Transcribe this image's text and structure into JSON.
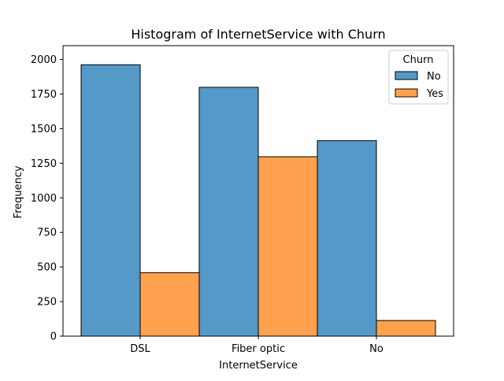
{
  "chart_data": {
    "type": "bar",
    "title": "Histogram of InternetService with Churn",
    "xlabel": "InternetService",
    "ylabel": "Frequency",
    "categories": [
      "DSL",
      "Fiber optic",
      "No"
    ],
    "series": [
      {
        "name": "No",
        "values": [
          1962,
          1799,
          1413
        ],
        "color": "#5599c8"
      },
      {
        "name": "Yes",
        "values": [
          459,
          1297,
          113
        ],
        "color": "#ffa14e"
      }
    ],
    "ylim": [
      0,
      2100
    ],
    "yticks": [
      0,
      250,
      500,
      750,
      1000,
      1250,
      1500,
      1750,
      2000
    ],
    "grid": false,
    "legend": {
      "title": "Churn",
      "placement": "top-right"
    },
    "edge_color": "#000000"
  }
}
